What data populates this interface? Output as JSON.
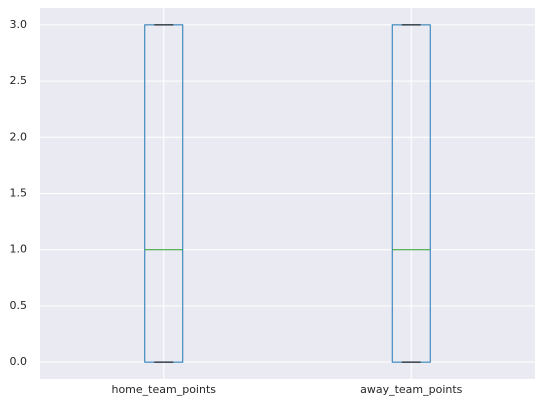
{
  "chart_data": {
    "type": "box",
    "categories": [
      "home_team_points",
      "away_team_points"
    ],
    "boxes": [
      {
        "min": 0,
        "q1": 0,
        "median": 1,
        "q3": 3,
        "max": 3
      },
      {
        "min": 0,
        "q1": 0,
        "median": 1,
        "q3": 3,
        "max": 3
      }
    ],
    "box_color": "#1f77b4",
    "median_color": "#2ca02c",
    "cap_color": "#000000",
    "ylim": [
      -0.15,
      3.15
    ],
    "yticks": [
      {
        "value": 0,
        "label": "0.0"
      },
      {
        "value": 0.5,
        "label": "0.5"
      },
      {
        "value": 1,
        "label": "1.0"
      },
      {
        "value": 1.5,
        "label": "1.5"
      },
      {
        "value": 2,
        "label": "2.0"
      },
      {
        "value": 2.5,
        "label": "2.5"
      },
      {
        "value": 3,
        "label": "3.0"
      }
    ],
    "grid": true
  }
}
